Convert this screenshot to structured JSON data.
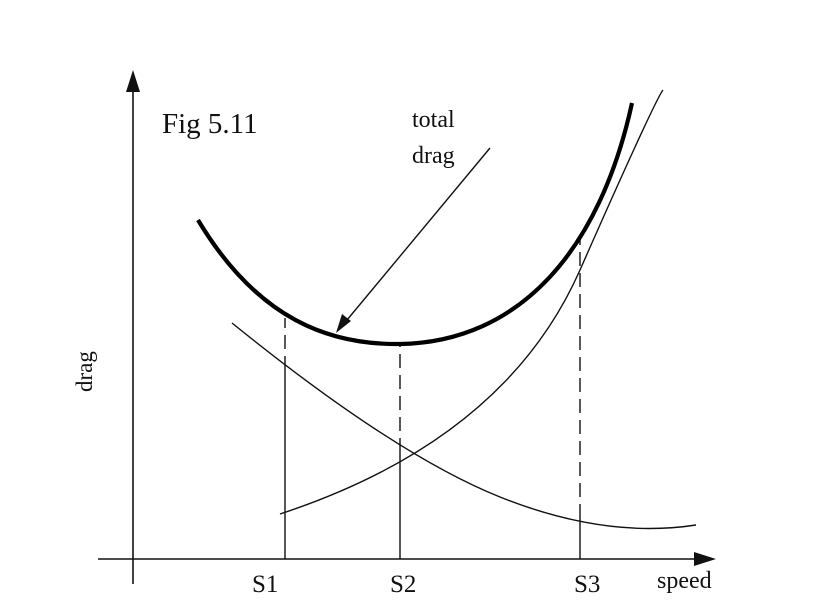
{
  "figure_label": "Fig 5.11",
  "y_axis_label": "drag",
  "x_axis_label": "speed",
  "annotation": {
    "line1": "total",
    "line2": "drag"
  },
  "speed_markers": [
    "S1",
    "S2",
    "S3"
  ],
  "colors": {
    "ink": "#111111",
    "background": "#ffffff"
  }
}
